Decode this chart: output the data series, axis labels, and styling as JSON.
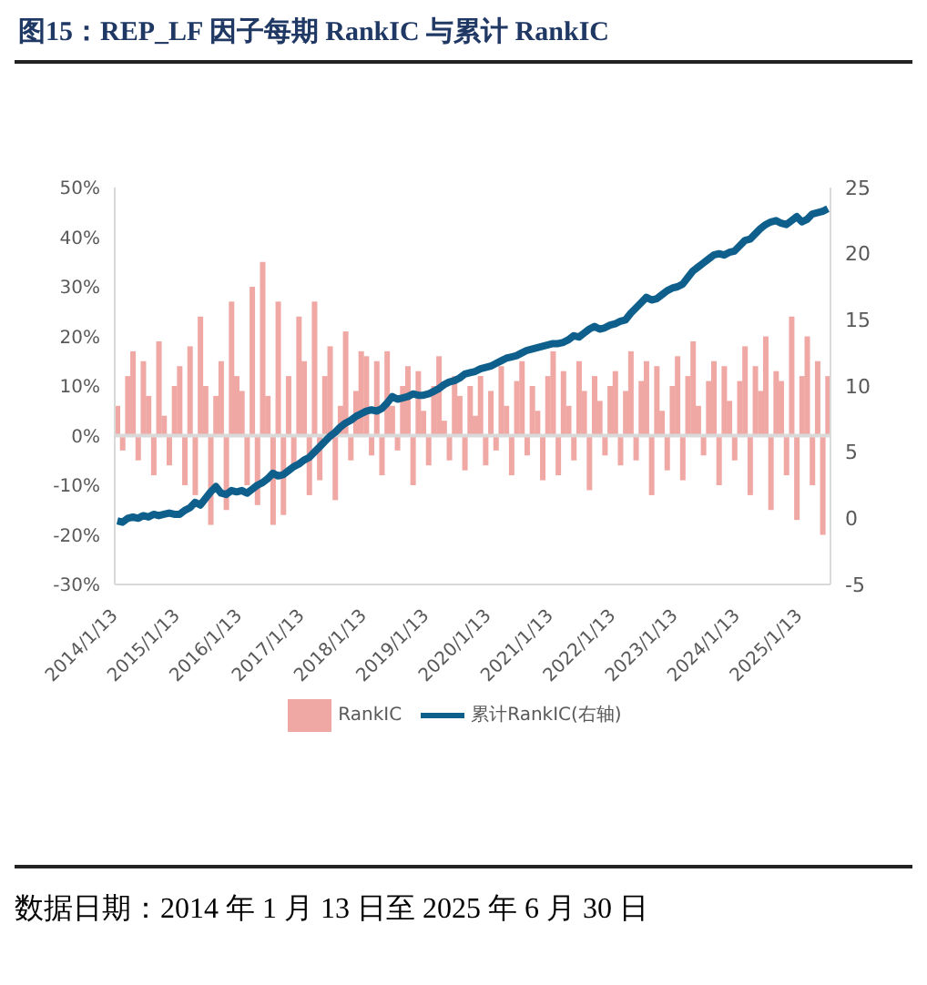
{
  "chart_data": {
    "type": "bar",
    "title": "图15：REP_LF 因子每期 RankIC 与累计 RankIC",
    "categories": [
      "2014/1/13",
      null,
      null,
      null,
      null,
      null,
      null,
      null,
      null,
      null,
      null,
      null,
      "2015/1/13",
      null,
      null,
      null,
      null,
      null,
      null,
      null,
      null,
      null,
      null,
      null,
      "2016/1/13",
      null,
      null,
      null,
      null,
      null,
      null,
      null,
      null,
      null,
      null,
      null,
      "2017/1/13",
      null,
      null,
      null,
      null,
      null,
      null,
      null,
      null,
      null,
      null,
      null,
      "2018/1/13",
      null,
      null,
      null,
      null,
      null,
      null,
      null,
      null,
      null,
      null,
      null,
      "2019/1/13",
      null,
      null,
      null,
      null,
      null,
      null,
      null,
      null,
      null,
      null,
      null,
      "2020/1/13",
      null,
      null,
      null,
      null,
      null,
      null,
      null,
      null,
      null,
      null,
      null,
      "2021/1/13",
      null,
      null,
      null,
      null,
      null,
      null,
      null,
      null,
      null,
      null,
      null,
      "2022/1/13",
      null,
      null,
      null,
      null,
      null,
      null,
      null,
      null,
      null,
      null,
      null,
      "2023/1/13",
      null,
      null,
      null,
      null,
      null,
      null,
      null,
      null,
      null,
      null,
      null,
      "2024/1/13",
      null,
      null,
      null,
      null,
      null,
      null,
      null,
      null,
      null,
      null,
      null,
      "2025/1/13",
      null,
      null,
      null,
      null,
      null
    ],
    "series": [
      {
        "name": "RankIC",
        "color": "#f0a8a4",
        "values": [
          6,
          -3,
          12,
          17,
          -5,
          15,
          8,
          -8,
          19,
          4,
          -6,
          10,
          14,
          -10,
          18,
          -12,
          24,
          10,
          -18,
          8,
          15,
          -15,
          27,
          12,
          9,
          -10,
          30,
          -14,
          35,
          8,
          -18,
          27,
          -16,
          12,
          -6,
          24,
          15,
          -12,
          27,
          -9,
          12,
          18,
          -13,
          6,
          21,
          -5,
          9,
          17,
          16,
          -4,
          15,
          -8,
          17,
          6,
          -3,
          10,
          14,
          -10,
          13,
          5,
          -6,
          10,
          16,
          3,
          -5,
          12,
          8,
          -7,
          10,
          4,
          12,
          -6,
          9,
          -3,
          14,
          6,
          -8,
          11,
          15,
          -4,
          10,
          5,
          -9,
          12,
          17,
          -8,
          13,
          6,
          -5,
          15,
          9,
          -11,
          12,
          7,
          -4,
          10,
          13,
          -6,
          9,
          17,
          -5,
          11,
          15,
          -12,
          14,
          5,
          -7,
          10,
          16,
          -9,
          12,
          19,
          6,
          -4,
          11,
          15,
          -10,
          14,
          7,
          -5,
          11,
          18,
          -12,
          14,
          9,
          20,
          -15,
          13,
          11,
          -8,
          24,
          -17,
          12,
          20,
          -10,
          15,
          -20,
          12
        ]
      },
      {
        "name": "累计RankIC(右轴)",
        "type": "line",
        "axis": "y2",
        "color": "#0e5f8c",
        "values": [
          -0.2,
          -0.3,
          0,
          0.1,
          0,
          0.2,
          0.1,
          0.3,
          0.2,
          0.3,
          0.4,
          0.3,
          0.3,
          0.6,
          0.8,
          1.2,
          1,
          1.5,
          2,
          2.4,
          1.9,
          1.8,
          2.1,
          2,
          2.1,
          1.9,
          2.2,
          2.5,
          2.7,
          3,
          3.4,
          3.2,
          3.3,
          3.6,
          3.9,
          4.1,
          4.4,
          4.6,
          5,
          5.4,
          5.8,
          6.2,
          6.5,
          6.9,
          7.2,
          7.4,
          7.7,
          7.9,
          8.1,
          8.2,
          8.1,
          8.3,
          8.7,
          9.2,
          9,
          9.1,
          9.2,
          9.4,
          9.3,
          9.3,
          9.4,
          9.6,
          9.8,
          10.1,
          10.3,
          10.4,
          10.6,
          10.9,
          11,
          11.1,
          11.3,
          11.4,
          11.5,
          11.7,
          11.9,
          12.1,
          12.2,
          12.3,
          12.5,
          12.7,
          12.8,
          12.9,
          13,
          13.1,
          13.2,
          13.2,
          13.3,
          13.5,
          13.8,
          13.7,
          14,
          14.3,
          14.5,
          14.3,
          14.4,
          14.6,
          14.7,
          14.9,
          15,
          15.5,
          15.9,
          16.3,
          16.7,
          16.5,
          16.6,
          16.9,
          17.2,
          17.4,
          17.5,
          17.7,
          18.2,
          18.7,
          19,
          19.3,
          19.6,
          19.9,
          20,
          19.9,
          20.1,
          20.2,
          20.6,
          21,
          21.1,
          21.5,
          21.9,
          22.2,
          22.4,
          22.5,
          22.3,
          22.2,
          22.5,
          22.8,
          22.4,
          22.6,
          23,
          23.1,
          23.2,
          23.4
        ]
      }
    ],
    "ylim": [
      -30,
      50
    ],
    "yticks": [
      {
        "value": -30,
        "label": "-30%"
      },
      {
        "value": -20,
        "label": "-20%"
      },
      {
        "value": -10,
        "label": "-10%"
      },
      {
        "value": 0,
        "label": "0%"
      },
      {
        "value": 10,
        "label": "10%"
      },
      {
        "value": 20,
        "label": "20%"
      },
      {
        "value": 30,
        "label": "30%"
      },
      {
        "value": 40,
        "label": "40%"
      },
      {
        "value": 50,
        "label": "50%"
      }
    ],
    "y2lim": [
      -5,
      25
    ],
    "y2ticks": [
      -5,
      0,
      5,
      10,
      15,
      20,
      25
    ],
    "legend": "bottom",
    "ref_lines": [
      {
        "axis": "y",
        "value": 0,
        "color": "#d9d9d9"
      }
    ],
    "annotations": [
      "数据日期：2014 年 1 月 13 日至 2025 年 6 月 30 日"
    ]
  }
}
